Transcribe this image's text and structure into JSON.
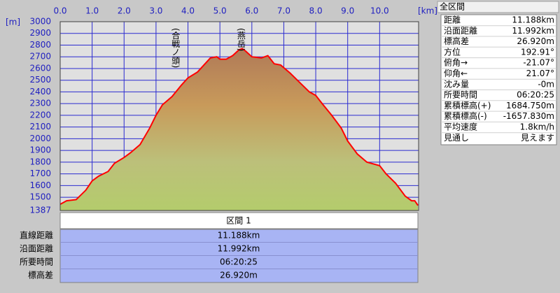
{
  "chart_data": {
    "type": "line",
    "x_unit": "[km]",
    "y_unit": "[m]",
    "xlim": [
      0,
      11.22
    ],
    "ylim": [
      1387,
      3000
    ],
    "xticks": [
      {
        "value": 0,
        "label": "0.0"
      },
      {
        "value": 1,
        "label": "1.0"
      },
      {
        "value": 2,
        "label": "2.0"
      },
      {
        "value": 3,
        "label": "3.0"
      },
      {
        "value": 4,
        "label": "4.0"
      },
      {
        "value": 5,
        "label": "5.0"
      },
      {
        "value": 6,
        "label": "6.0"
      },
      {
        "value": 7,
        "label": "7.0"
      },
      {
        "value": 8,
        "label": "8.0"
      },
      {
        "value": 9,
        "label": "9.0"
      },
      {
        "value": 10,
        "label": "10.0"
      }
    ],
    "yticks": [
      1387,
      1500,
      1600,
      1700,
      1800,
      1900,
      2000,
      2100,
      2200,
      2300,
      2400,
      2500,
      2600,
      2700,
      2800,
      2900,
      3000
    ],
    "grid": true,
    "grid_color": "#2b2bd0",
    "x": [
      0,
      0.2,
      0.5,
      0.8,
      1.0,
      1.2,
      1.5,
      1.7,
      2.0,
      2.2,
      2.5,
      2.8,
      3.0,
      3.2,
      3.5,
      3.8,
      4.0,
      4.3,
      4.5,
      4.7,
      4.9,
      5.0,
      5.2,
      5.4,
      5.6,
      5.7,
      5.8,
      6.0,
      6.3,
      6.5,
      6.7,
      6.9,
      7.2,
      7.5,
      7.8,
      8.0,
      8.2,
      8.5,
      8.8,
      9.0,
      9.3,
      9.6,
      10.0,
      10.2,
      10.5,
      10.8,
      11.0,
      11.1,
      11.2
    ],
    "series": [
      {
        "color": "#ff0000",
        "values": [
          1440,
          1470,
          1480,
          1560,
          1640,
          1680,
          1720,
          1790,
          1840,
          1880,
          1950,
          2090,
          2200,
          2290,
          2360,
          2460,
          2520,
          2570,
          2630,
          2690,
          2700,
          2680,
          2680,
          2710,
          2760,
          2770,
          2750,
          2700,
          2690,
          2710,
          2640,
          2630,
          2560,
          2480,
          2400,
          2370,
          2300,
          2200,
          2090,
          1980,
          1870,
          1800,
          1770,
          1700,
          1620,
          1510,
          1470,
          1470,
          1430
        ]
      }
    ],
    "annotations": [
      {
        "text": "(合戦ノ頭)",
        "x": 3.6
      },
      {
        "text": "(燕岳)",
        "x": 5.65
      }
    ]
  },
  "summary": {
    "title": "全区間",
    "rows": [
      [
        "距離",
        "11.188km"
      ],
      [
        "沿面距離",
        "11.992km"
      ],
      [
        "標高差",
        "26.920m"
      ],
      [
        "方位",
        "192.91°"
      ],
      [
        "俯角→",
        "-21.07°"
      ],
      [
        "仰角←",
        "21.07°"
      ],
      [
        "沈み量",
        "-0m"
      ],
      [
        "所要時間",
        "06:20:25"
      ],
      [
        "累積標高(+)",
        "1684.750m"
      ],
      [
        "累積標高(-)",
        "-1657.830m"
      ],
      [
        "平均速度",
        "1.8km/h"
      ],
      [
        "見通し",
        "見えます"
      ]
    ]
  },
  "segment": {
    "title": "区間 1",
    "rows": [
      [
        "直線距離",
        "11.188km"
      ],
      [
        "沿面距離",
        "11.992km"
      ],
      [
        "所要時間",
        "06:20:25"
      ],
      [
        "標高差",
        "26.920m"
      ]
    ]
  }
}
